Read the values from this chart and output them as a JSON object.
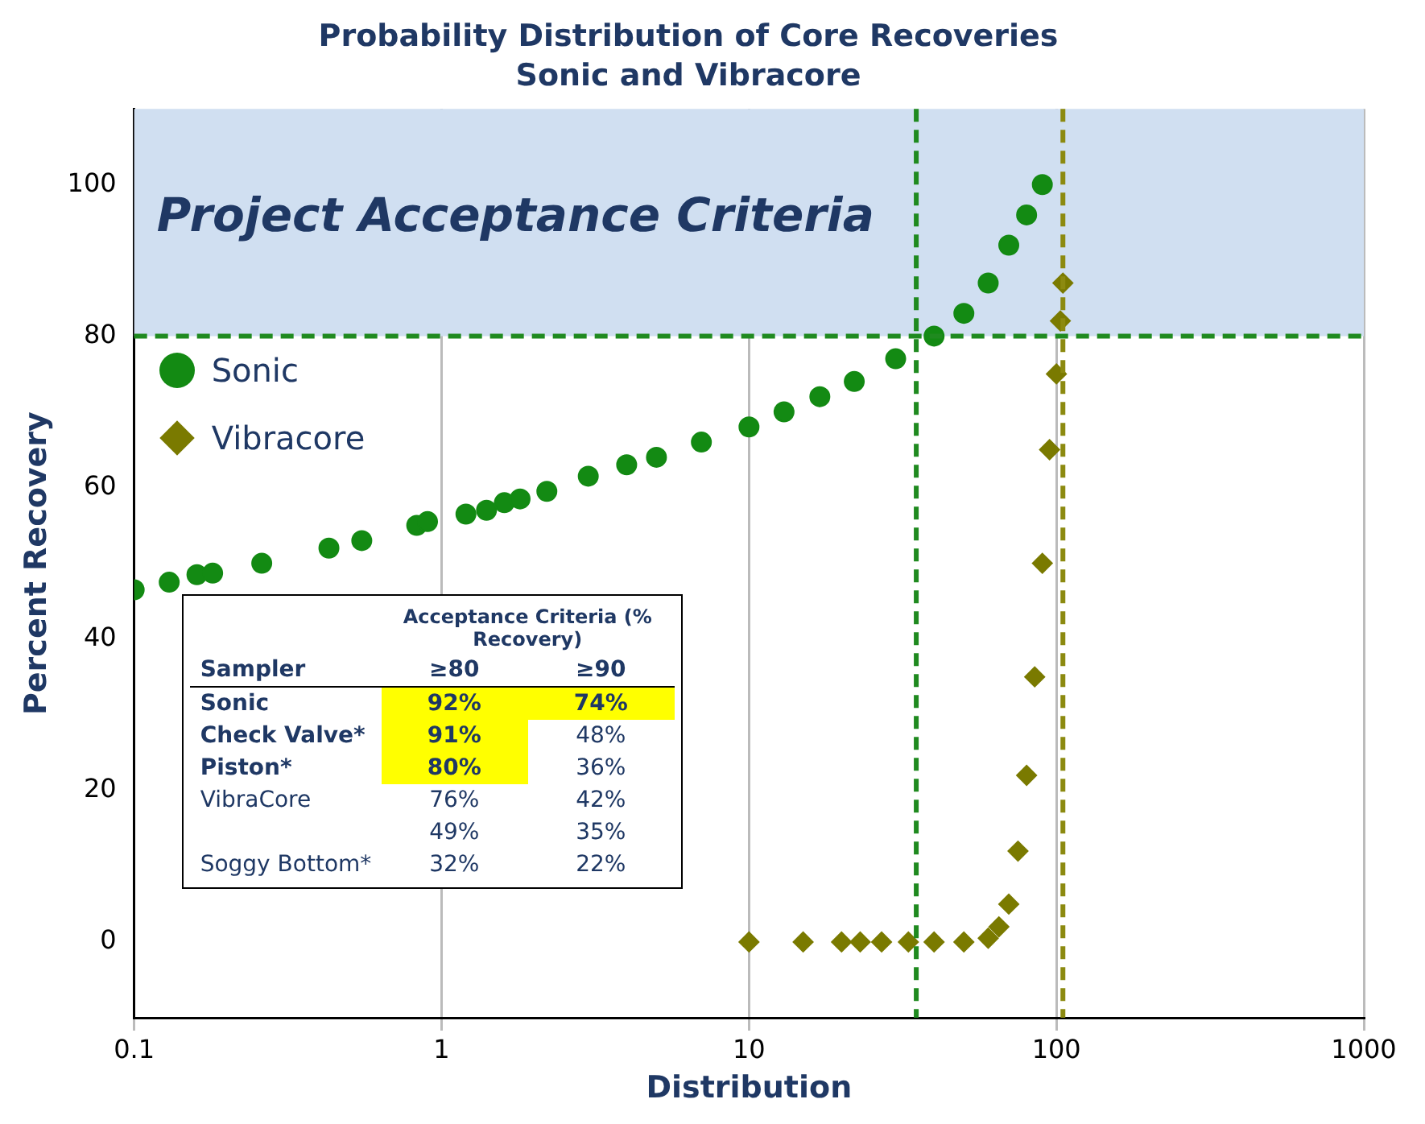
{
  "chart_data": {
    "type": "scatter",
    "title": "Probability Distribution of Core Recoveries",
    "subtitle": "Sonic and Vibracore",
    "xlabel": "Distribution",
    "ylabel": "Percent Recovery",
    "log": "x",
    "xlim": [
      0.1,
      1000
    ],
    "xticks": [
      0.1,
      1,
      10,
      100,
      1000
    ],
    "ylim": [
      -10,
      110
    ],
    "yticks": [
      0,
      20,
      40,
      60,
      80,
      100
    ],
    "grid": "x",
    "legend": "top left",
    "series": [
      {
        "name": "Sonic",
        "color": "#138a13",
        "marker": "circle",
        "x": [
          0.1,
          0.13,
          0.16,
          0.18,
          0.26,
          0.43,
          0.55,
          0.83,
          0.9,
          1.2,
          1.4,
          1.6,
          1.8,
          2.2,
          3,
          4,
          5,
          7,
          10,
          13,
          17,
          22,
          30,
          40,
          50,
          60,
          70,
          80,
          90
        ],
        "values": [
          46.5,
          47.5,
          48.5,
          48.7,
          50,
          52,
          53,
          55,
          55.5,
          56.5,
          57,
          58,
          58.5,
          59.5,
          61.5,
          63,
          64,
          66,
          68,
          70,
          72,
          74,
          77,
          80,
          83,
          87,
          92,
          96,
          100
        ]
      },
      {
        "name": "Vibracore",
        "color": "#7a7a00",
        "marker": "diamond",
        "x": [
          10,
          15,
          20,
          23,
          27,
          33,
          40,
          50,
          60,
          65,
          70,
          75,
          80,
          85,
          90,
          95,
          100,
          103,
          105
        ],
        "values": [
          0,
          0,
          0,
          0,
          0,
          0,
          0,
          0,
          0.5,
          2,
          5,
          12,
          22,
          35,
          50,
          65,
          75,
          82,
          87
        ]
      }
    ],
    "ref_lines": [
      {
        "axis": "y",
        "value": 80,
        "color": "#1f8a1f",
        "line_style": "dashed"
      },
      {
        "axis": "x",
        "value": 35,
        "color": "#1f8a1f",
        "line_style": "dashed"
      },
      {
        "axis": "x",
        "value": 105,
        "color": "#8c8a10",
        "line_style": "dashed"
      }
    ],
    "bands": [
      {
        "axis": "y",
        "from": 80,
        "to": 110,
        "label": "Project Acceptance Criteria",
        "color": "#d0dff1"
      }
    ],
    "annotations": [
      "Acceptance Criteria (% Recovery)",
      "Sampler",
      "≥80",
      "≥90",
      "Sonic",
      "92%",
      "74%",
      "Check Valve*",
      "91%",
      "48%",
      "Piston*",
      "80%",
      "36%",
      "VibraCore",
      "76%",
      "42%",
      null,
      "49%",
      "35%",
      "Soggy Bottom*",
      "32%",
      "22%"
    ]
  }
}
